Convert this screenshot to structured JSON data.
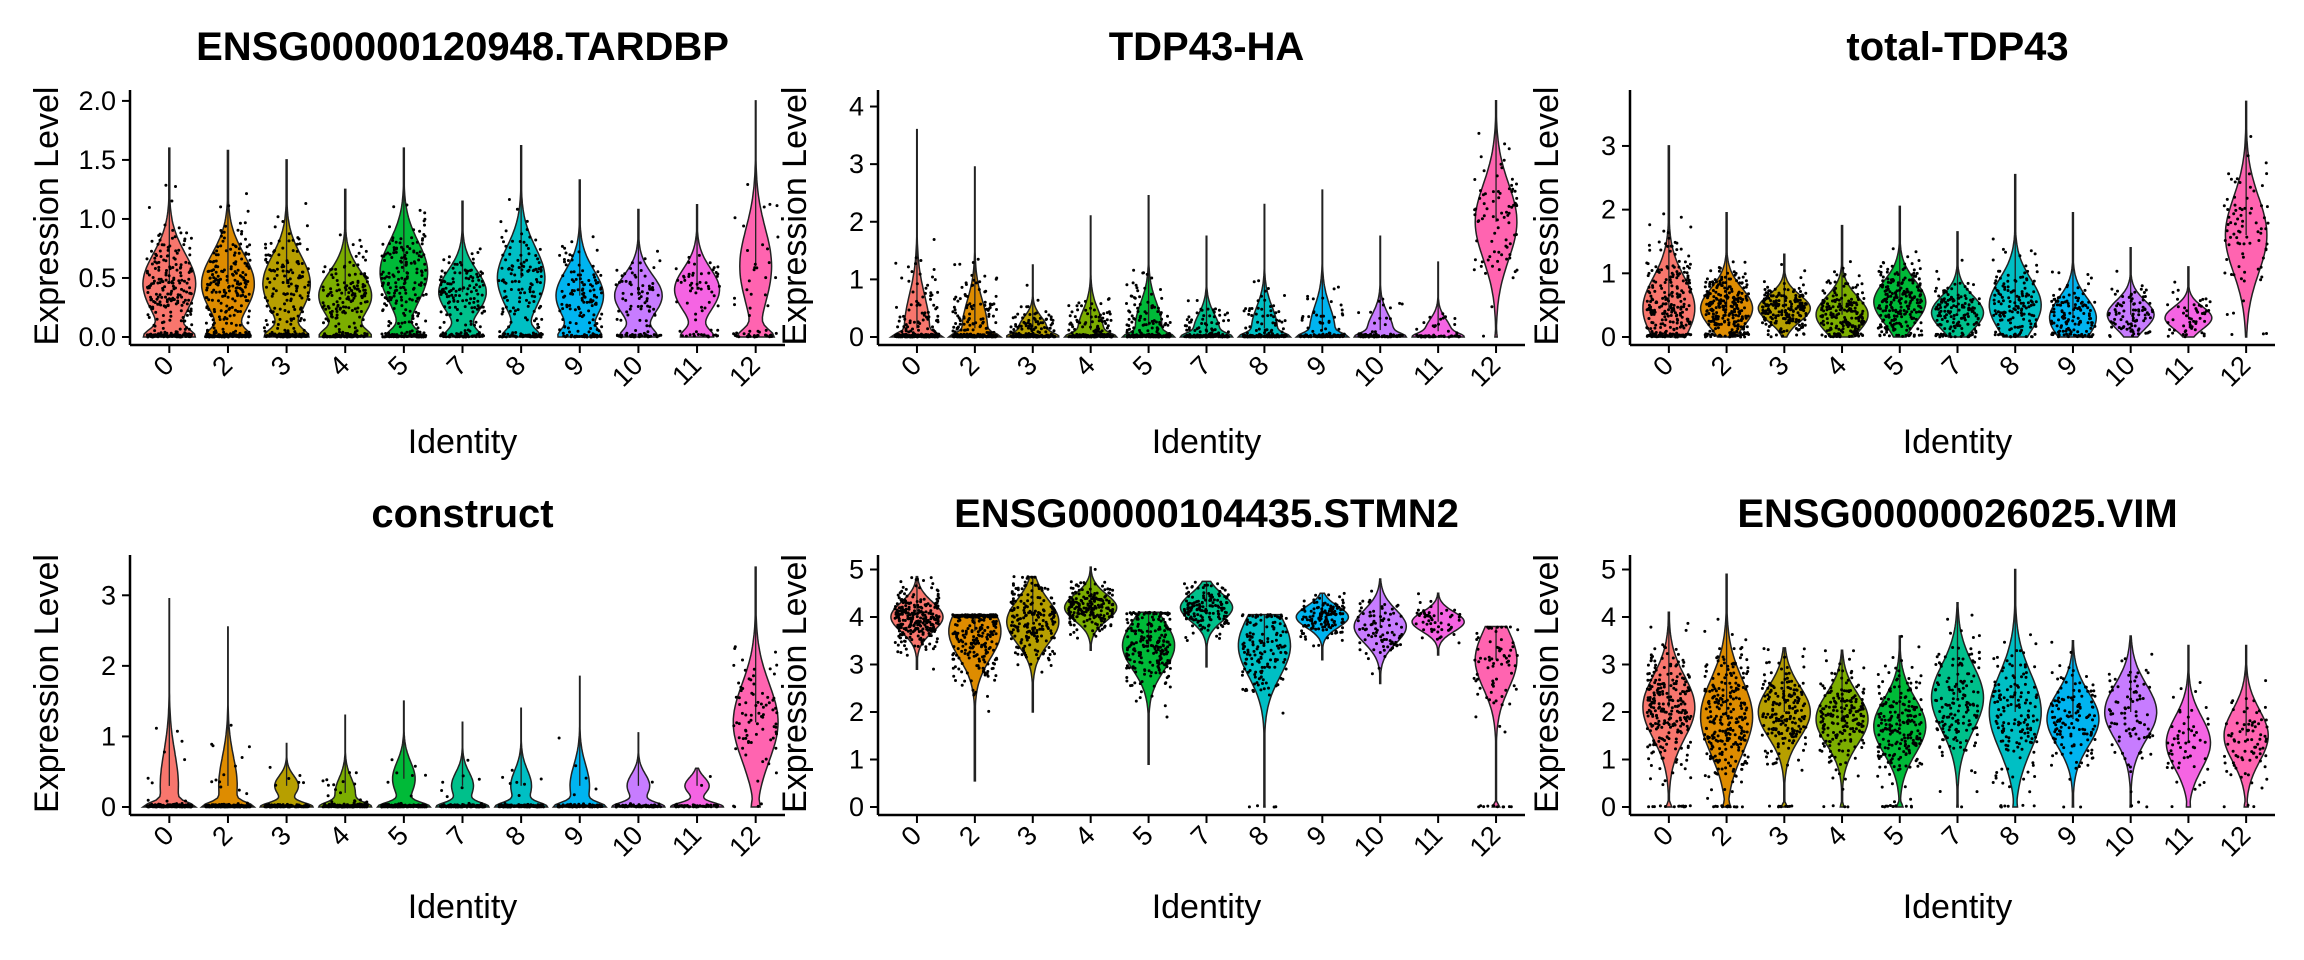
{
  "figure": {
    "axis_x_title": "Identity",
    "axis_y_title": "Expression Level"
  },
  "cluster_colors": {
    "0": "#F8766D",
    "2": "#DE8C00",
    "3": "#B79F00",
    "4": "#7CAE00",
    "5": "#00BA38",
    "7": "#00C08B",
    "8": "#00BFC4",
    "9": "#00B4F0",
    "10": "#C77CFF",
    "11": "#F564E3",
    "12": "#FF64B0"
  },
  "chart_data": [
    {
      "type": "violin",
      "title": "ENSG00000120948.TARDBP",
      "xlabel": "Identity",
      "ylabel": "Expression Level",
      "categories": [
        "0",
        "2",
        "3",
        "4",
        "5",
        "7",
        "8",
        "9",
        "10",
        "11",
        "12"
      ],
      "ylim": [
        0,
        2.05
      ],
      "yticks": [
        "0.0",
        "0.5",
        "1.0",
        "1.5",
        "2.0"
      ],
      "ytick_values": [
        0,
        0.5,
        1.0,
        1.5,
        2.0
      ],
      "max": [
        1.6,
        1.58,
        1.5,
        1.25,
        1.6,
        1.15,
        1.62,
        1.33,
        1.08,
        1.12,
        2.0
      ],
      "center": [
        0.45,
        0.45,
        0.45,
        0.35,
        0.55,
        0.38,
        0.5,
        0.35,
        0.35,
        0.4,
        0.6
      ],
      "width": [
        1,
        1,
        0.9,
        1,
        0.9,
        0.9,
        0.9,
        0.9,
        0.9,
        0.85,
        0.7
      ],
      "zero_frac": [
        0.35,
        0.3,
        0.35,
        0.35,
        0.3,
        0.3,
        0.3,
        0.3,
        0.3,
        0.3,
        0.45
      ],
      "points": [
        700,
        700,
        500,
        500,
        600,
        400,
        400,
        350,
        250,
        150,
        120
      ]
    },
    {
      "type": "violin",
      "title": "TDP43-HA",
      "xlabel": "Identity",
      "ylabel": "Expression Level",
      "categories": [
        "0",
        "2",
        "3",
        "4",
        "5",
        "7",
        "8",
        "9",
        "10",
        "11",
        "12"
      ],
      "ylim": [
        0,
        4.2
      ],
      "yticks": [
        "0",
        "1",
        "2",
        "3",
        "4"
      ],
      "ytick_values": [
        0,
        1,
        2,
        3,
        4
      ],
      "max": [
        3.6,
        2.95,
        1.25,
        2.1,
        2.45,
        1.75,
        2.3,
        2.55,
        1.75,
        1.3,
        4.1
      ],
      "center": [
        0.15,
        0.15,
        0.15,
        0.12,
        0.2,
        0.12,
        0.15,
        0.12,
        0.12,
        0.1,
        2.0
      ],
      "width": [
        1,
        1,
        1,
        1,
        1,
        1,
        1,
        1,
        1,
        1,
        0.8
      ],
      "zero_frac": [
        0.5,
        0.5,
        0.5,
        0.5,
        0.5,
        0.5,
        0.5,
        0.5,
        0.5,
        0.5,
        0.02
      ],
      "points": [
        600,
        600,
        450,
        450,
        500,
        350,
        350,
        300,
        200,
        120,
        180
      ]
    },
    {
      "type": "violin",
      "title": "total-TDP43",
      "xlabel": "Identity",
      "ylabel": "Expression Level",
      "categories": [
        "0",
        "2",
        "3",
        "4",
        "5",
        "7",
        "8",
        "9",
        "10",
        "11",
        "12"
      ],
      "ylim": [
        0,
        3.8
      ],
      "yticks": [
        "0",
        "1",
        "2",
        "3"
      ],
      "ytick_values": [
        0,
        1,
        2,
        3
      ],
      "max": [
        3.0,
        1.95,
        1.3,
        1.75,
        2.05,
        1.65,
        2.55,
        1.95,
        1.4,
        1.1,
        3.7
      ],
      "center": [
        0.45,
        0.45,
        0.45,
        0.35,
        0.55,
        0.38,
        0.5,
        0.3,
        0.35,
        0.3,
        1.6
      ],
      "width": [
        1,
        1,
        1,
        1,
        1,
        1,
        1,
        0.9,
        0.9,
        0.9,
        0.8
      ],
      "zero_frac": [
        0,
        0,
        0,
        0,
        0,
        0,
        0,
        0,
        0,
        0,
        0
      ],
      "points": [
        600,
        600,
        450,
        450,
        500,
        350,
        350,
        300,
        200,
        120,
        180
      ]
    },
    {
      "type": "violin",
      "title": "construct",
      "xlabel": "Identity",
      "ylabel": "Expression Level",
      "categories": [
        "0",
        "2",
        "3",
        "4",
        "5",
        "7",
        "8",
        "9",
        "10",
        "11",
        "12"
      ],
      "ylim": [
        0,
        3.5
      ],
      "yticks": [
        "0",
        "1",
        "2",
        "3"
      ],
      "ytick_values": [
        0,
        1,
        2,
        3
      ],
      "max": [
        2.95,
        2.55,
        0.9,
        1.3,
        1.5,
        1.2,
        1.4,
        1.85,
        1.05,
        0.55,
        3.4
      ],
      "center": [
        0.3,
        0.3,
        0.3,
        0.2,
        0.4,
        0.3,
        0.3,
        0.3,
        0.3,
        0.3,
        1.2
      ],
      "width": [
        1,
        1,
        1,
        1,
        1,
        1,
        1,
        1,
        1,
        1,
        0.85
      ],
      "zero_frac": [
        0.95,
        0.95,
        0.96,
        0.9,
        0.95,
        0.96,
        0.97,
        0.96,
        0.97,
        0.97,
        0.05
      ],
      "points": [
        600,
        600,
        450,
        450,
        500,
        350,
        350,
        300,
        200,
        120,
        180
      ]
    },
    {
      "type": "violin",
      "title": "ENSG00000104435.STMN2",
      "xlabel": "Identity",
      "ylabel": "Expression Level",
      "categories": [
        "0",
        "2",
        "3",
        "4",
        "5",
        "7",
        "8",
        "9",
        "10",
        "11",
        "12"
      ],
      "ylim": [
        0,
        5.2
      ],
      "yticks": [
        "0",
        "1",
        "2",
        "3",
        "4",
        "5"
      ],
      "ytick_values": [
        0,
        1,
        2,
        3,
        4,
        5
      ],
      "max": [
        4.85,
        4.05,
        4.85,
        5.05,
        4.1,
        4.75,
        4.05,
        4.5,
        4.8,
        4.5,
        3.8
      ],
      "min": [
        2.9,
        0.55,
        2.0,
        3.3,
        0.9,
        2.95,
        0,
        3.1,
        2.6,
        3.2,
        0
      ],
      "center": [
        4.0,
        3.7,
        3.9,
        4.2,
        3.4,
        4.2,
        3.4,
        4.0,
        3.8,
        3.9,
        3.1
      ],
      "width": [
        1,
        1,
        1,
        1,
        1,
        1,
        1,
        1,
        1,
        1,
        0.8
      ],
      "zero_frac": [
        0,
        0,
        0,
        0,
        0,
        0,
        0.01,
        0,
        0,
        0,
        0.08
      ],
      "points": [
        600,
        600,
        450,
        450,
        500,
        350,
        350,
        300,
        200,
        120,
        180
      ]
    },
    {
      "type": "violin",
      "title": "ENSG00000026025.VIM",
      "xlabel": "Identity",
      "ylabel": "Expression Level",
      "categories": [
        "0",
        "2",
        "3",
        "4",
        "5",
        "7",
        "8",
        "9",
        "10",
        "11",
        "12"
      ],
      "ylim": [
        0,
        5.2
      ],
      "yticks": [
        "0",
        "1",
        "2",
        "3",
        "4",
        "5"
      ],
      "ytick_values": [
        0,
        1,
        2,
        3,
        4,
        5
      ],
      "max": [
        4.1,
        4.9,
        3.35,
        3.3,
        3.6,
        4.3,
        5.0,
        3.5,
        3.6,
        3.4,
        3.4
      ],
      "center": [
        2.1,
        1.9,
        2.0,
        1.85,
        1.7,
        2.3,
        2.0,
        1.85,
        2.0,
        1.35,
        1.5
      ],
      "width": [
        1,
        1,
        1,
        1,
        1,
        1,
        1,
        1,
        1,
        0.85,
        0.85
      ],
      "zero_frac": [
        0.05,
        0.05,
        0.05,
        0.03,
        0.05,
        0.01,
        0.02,
        0.01,
        0.01,
        0.02,
        0.03
      ],
      "points": [
        600,
        600,
        450,
        450,
        500,
        350,
        350,
        300,
        200,
        120,
        180
      ]
    }
  ]
}
